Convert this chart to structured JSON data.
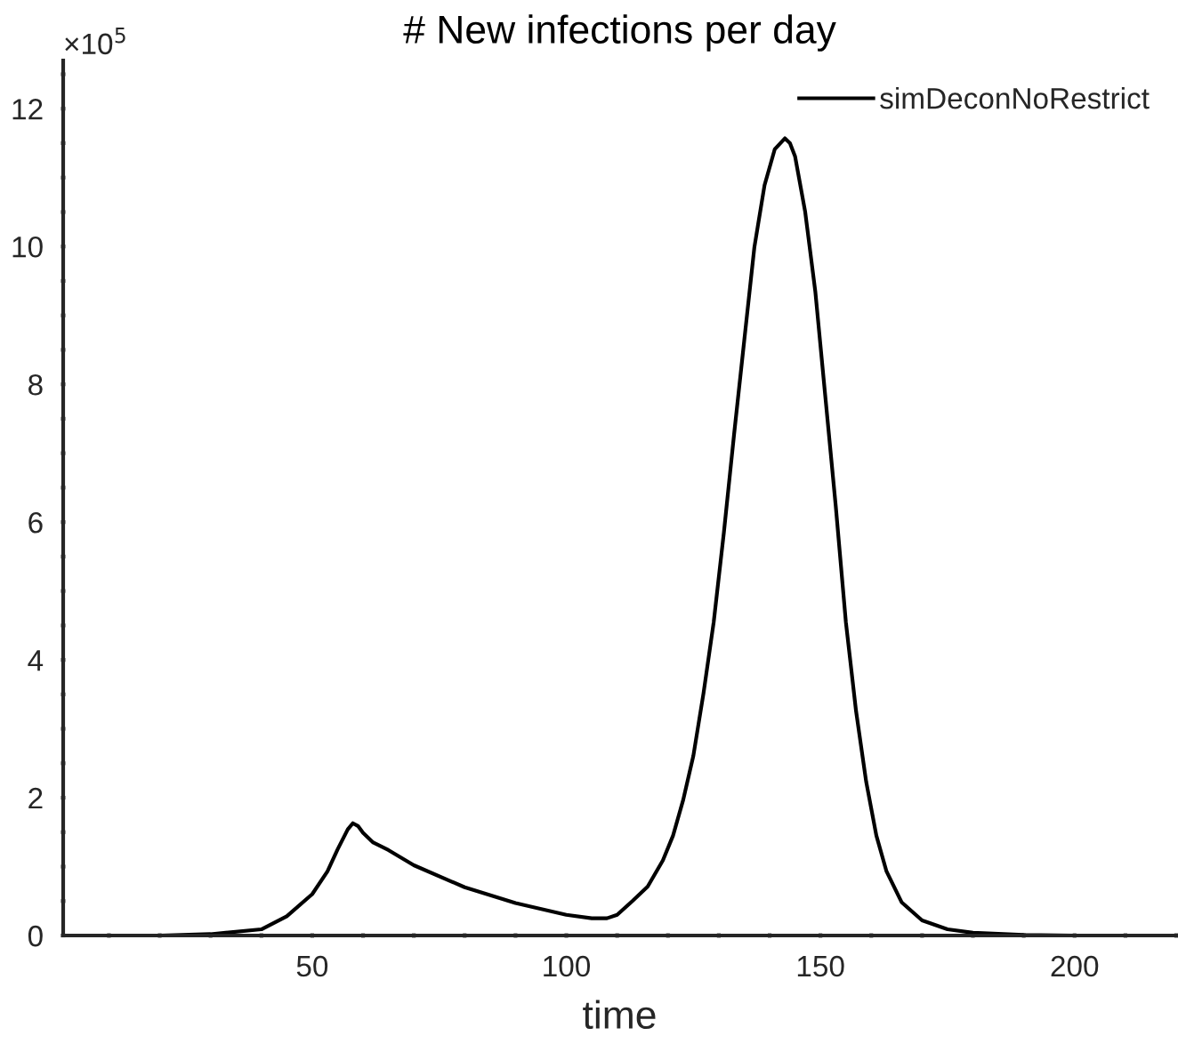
{
  "chart_data": {
    "type": "line",
    "title": "# New infections per day",
    "xlabel": "time",
    "annotations": [
      "×10$^{5}$"
    ],
    "xlim": [
      1,
      220
    ],
    "xticks": [
      {
        "value": 10,
        "label": null
      },
      {
        "value": 20,
        "label": null
      },
      {
        "value": 30,
        "label": null
      },
      {
        "value": 40,
        "label": null
      },
      50,
      {
        "value": 60,
        "label": null
      },
      {
        "value": 70,
        "label": null
      },
      {
        "value": 80,
        "label": null
      },
      {
        "value": 90,
        "label": null
      },
      100,
      {
        "value": 110,
        "label": null
      },
      {
        "value": 120,
        "label": null
      },
      {
        "value": 130,
        "label": null
      },
      {
        "value": 140,
        "label": null
      },
      150,
      {
        "value": 160,
        "label": null
      },
      {
        "value": 170,
        "label": null
      },
      {
        "value": 180,
        "label": null
      },
      {
        "value": 190,
        "label": null
      },
      200,
      {
        "value": 210,
        "label": null
      },
      {
        "value": 220,
        "label": null
      }
    ],
    "ylim": [
      0,
      12.7
    ],
    "yticks": [
      0,
      {
        "value": 0.5,
        "label": null
      },
      {
        "value": 1,
        "label": null
      },
      {
        "value": 1.5,
        "label": null
      },
      2,
      {
        "value": 2.5,
        "label": null
      },
      {
        "value": 3,
        "label": null
      },
      {
        "value": 3.5,
        "label": null
      },
      4,
      {
        "value": 4.5,
        "label": null
      },
      {
        "value": 5,
        "label": null
      },
      {
        "value": 5.5,
        "label": null
      },
      6,
      {
        "value": 6.5,
        "label": null
      },
      {
        "value": 7,
        "label": null
      },
      {
        "value": 7.5,
        "label": null
      },
      8,
      {
        "value": 8.5,
        "label": null
      },
      {
        "value": 9,
        "label": null
      },
      {
        "value": 9.5,
        "label": null
      },
      10,
      {
        "value": 10.5,
        "label": null
      },
      {
        "value": 11,
        "label": null
      },
      {
        "value": 11.5,
        "label": null
      },
      12,
      {
        "value": 12.5,
        "label": null
      }
    ],
    "grid": false,
    "legend": "top right",
    "line_style": "solid",
    "marker": "none",
    "series": [
      {
        "name": "simDeconNoRestrict",
        "color": "#000000",
        "x": [
          1,
          20,
          30,
          40,
          45,
          50,
          53,
          55,
          57,
          58,
          59,
          60,
          62,
          65,
          70,
          80,
          90,
          100,
          105,
          108,
          110,
          113,
          116,
          119,
          121,
          123,
          125,
          127,
          129,
          131,
          133,
          135,
          137,
          139,
          141,
          143,
          144,
          145,
          147,
          149,
          151,
          153,
          155,
          157,
          159,
          161,
          163,
          166,
          170,
          175,
          180,
          190,
          200,
          204
        ],
        "values": [
          0,
          0,
          0.02,
          0.09,
          0.28,
          0.6,
          0.93,
          1.25,
          1.54,
          1.63,
          1.59,
          1.49,
          1.35,
          1.24,
          1.02,
          0.7,
          0.47,
          0.3,
          0.25,
          0.25,
          0.3,
          0.5,
          0.71,
          1.09,
          1.45,
          1.97,
          2.61,
          3.52,
          4.55,
          5.85,
          7.27,
          8.63,
          9.99,
          10.89,
          11.41,
          11.57,
          11.5,
          11.31,
          10.5,
          9.34,
          7.79,
          6.24,
          4.55,
          3.26,
          2.23,
          1.45,
          0.93,
          0.48,
          0.22,
          0.09,
          0.04,
          0.01,
          0,
          0
        ]
      }
    ]
  }
}
